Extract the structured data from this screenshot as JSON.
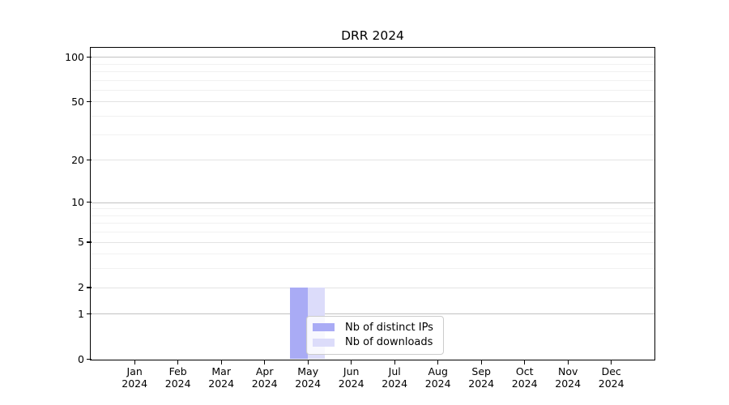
{
  "chart_data": {
    "type": "bar",
    "title": "DRR 2024",
    "categories": [
      {
        "label": "Jan",
        "sublabel": "2024"
      },
      {
        "label": "Feb",
        "sublabel": "2024"
      },
      {
        "label": "Mar",
        "sublabel": "2024"
      },
      {
        "label": "Apr",
        "sublabel": "2024"
      },
      {
        "label": "May",
        "sublabel": "2024"
      },
      {
        "label": "Jun",
        "sublabel": "2024"
      },
      {
        "label": "Jul",
        "sublabel": "2024"
      },
      {
        "label": "Aug",
        "sublabel": "2024"
      },
      {
        "label": "Sep",
        "sublabel": "2024"
      },
      {
        "label": "Oct",
        "sublabel": "2024"
      },
      {
        "label": "Nov",
        "sublabel": "2024"
      },
      {
        "label": "Dec",
        "sublabel": "2024"
      }
    ],
    "series": [
      {
        "name": "Nb of distinct IPs",
        "color": "#a9abf5",
        "values": [
          0,
          0,
          0,
          0,
          2,
          0,
          0,
          0,
          0,
          0,
          0,
          0
        ]
      },
      {
        "name": "Nb of downloads",
        "color": "#dcdcfa",
        "values": [
          0,
          0,
          0,
          0,
          2,
          0,
          0,
          0,
          0,
          0,
          0,
          0
        ]
      }
    ],
    "xlabel": "",
    "ylabel": "",
    "yscale": "log1p",
    "ylim": [
      0,
      115
    ],
    "yticks": [
      0,
      1,
      2,
      5,
      10,
      20,
      50,
      100
    ],
    "yticks_minor": [
      3,
      4,
      6,
      7,
      8,
      9,
      30,
      40,
      60,
      70,
      80,
      90
    ],
    "grid": "horizontal",
    "legend_position": "lower center"
  }
}
